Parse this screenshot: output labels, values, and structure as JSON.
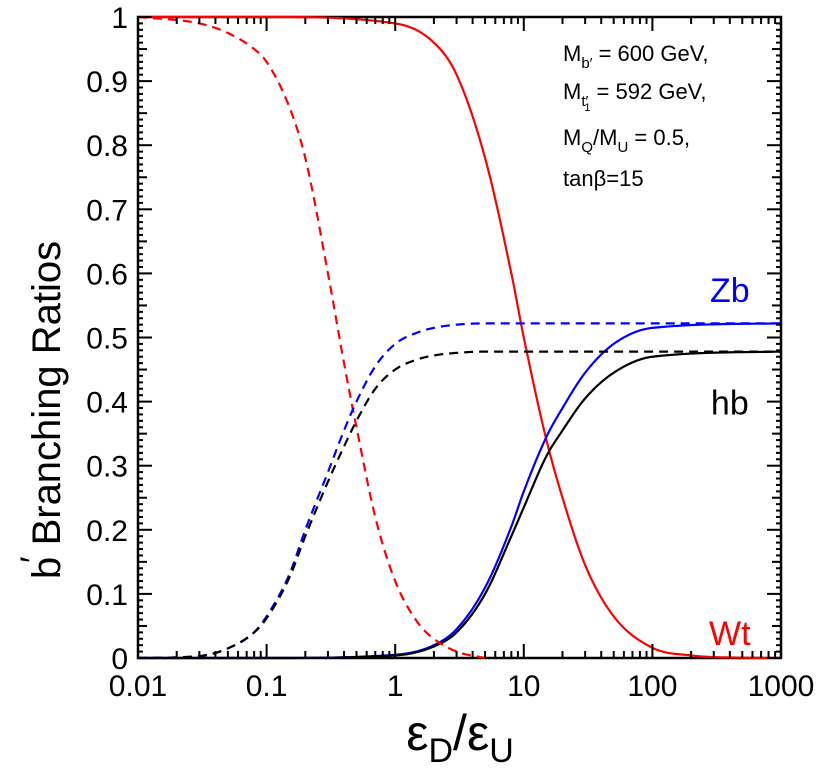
{
  "chart_data": {
    "type": "line",
    "title": "",
    "xlabel": "εD/εU",
    "xlabel_parts": {
      "eps1": "ε",
      "sub1": "D",
      "slash": "/",
      "eps2": "ε",
      "sub2": "U"
    },
    "ylabel": "b′ Branching Ratios",
    "ylabel_parts": {
      "b": "b",
      "prime": "′",
      "rest": " Branching Ratios"
    },
    "xscale": "log",
    "xlim": [
      0.01,
      1000
    ],
    "ylim": [
      0,
      1
    ],
    "xticks": [
      0.01,
      0.1,
      1,
      10,
      100,
      1000
    ],
    "xtick_labels": [
      "0.01",
      "0.1",
      "1",
      "10",
      "100",
      "1000"
    ],
    "yticks": [
      0,
      0.1,
      0.2,
      0.3,
      0.4,
      0.5,
      0.6,
      0.7,
      0.8,
      0.9,
      1
    ],
    "ytick_labels": [
      "0",
      "0.1",
      "0.2",
      "0.3",
      "0.4",
      "0.5",
      "0.6",
      "0.7",
      "0.8",
      "0.9",
      "1"
    ],
    "info_lines": {
      "line1": {
        "main": "M",
        "sub": "b′",
        "rest": " = 600 GeV,"
      },
      "line2": {
        "main": "M",
        "sub": "t′",
        "subsub": "1",
        "rest": " = 592 GeV,"
      },
      "line3": {
        "main1": "M",
        "sub1": "Q",
        "slash": "/M",
        "sub2": "U",
        "rest": " = 0.5,"
      },
      "line4": {
        "text": "tanβ=15"
      }
    },
    "series": [
      {
        "name": "Wt",
        "color": "#ff0000",
        "style": "solid",
        "x": [
          0.01,
          0.1,
          1,
          2,
          3,
          5,
          8,
          10,
          15,
          20,
          30,
          50,
          100,
          200,
          500,
          1000
        ],
        "y": [
          1.0,
          1.0,
          0.99,
          0.96,
          0.91,
          0.78,
          0.6,
          0.5,
          0.34,
          0.25,
          0.145,
          0.065,
          0.016,
          0.004,
          0.0005,
          0.0
        ]
      },
      {
        "name": "Zb",
        "color": "#0000ff",
        "style": "solid",
        "x": [
          0.01,
          0.1,
          1,
          2,
          3,
          5,
          8,
          10,
          15,
          20,
          30,
          50,
          100,
          1000
        ],
        "y": [
          0.0,
          0.0,
          0.005,
          0.02,
          0.045,
          0.11,
          0.205,
          0.26,
          0.345,
          0.39,
          0.445,
          0.49,
          0.515,
          0.522
        ]
      },
      {
        "name": "hb",
        "color": "#000000",
        "style": "solid",
        "x": [
          0.01,
          0.1,
          1,
          2,
          3,
          5,
          8,
          10,
          15,
          20,
          30,
          50,
          100,
          1000
        ],
        "y": [
          0.0,
          0.0,
          0.004,
          0.018,
          0.04,
          0.1,
          0.19,
          0.235,
          0.315,
          0.355,
          0.405,
          0.445,
          0.47,
          0.478
        ]
      },
      {
        "name": "Wt (dashed)",
        "color": "#ff0000",
        "style": "dashed",
        "x": [
          0.01,
          0.03,
          0.05,
          0.08,
          0.1,
          0.15,
          0.2,
          0.3,
          0.4,
          0.5,
          0.7,
          1,
          1.5,
          2,
          3,
          5
        ],
        "y": [
          1.0,
          0.99,
          0.975,
          0.95,
          0.93,
          0.86,
          0.78,
          0.6,
          0.46,
          0.36,
          0.22,
          0.12,
          0.055,
          0.03,
          0.01,
          0.0
        ]
      },
      {
        "name": "Zb (dashed)",
        "color": "#0000ff",
        "style": "dashed",
        "x": [
          0.01,
          0.03,
          0.05,
          0.08,
          0.1,
          0.15,
          0.2,
          0.3,
          0.4,
          0.5,
          0.7,
          1,
          1.5,
          2,
          3,
          5,
          10,
          1000
        ],
        "y": [
          0.0,
          0.003,
          0.015,
          0.04,
          0.065,
          0.13,
          0.2,
          0.29,
          0.355,
          0.4,
          0.455,
          0.49,
          0.508,
          0.515,
          0.52,
          0.522,
          0.522,
          0.522
        ]
      },
      {
        "name": "hb (dashed)",
        "color": "#000000",
        "style": "dashed",
        "x": [
          0.01,
          0.03,
          0.05,
          0.08,
          0.1,
          0.15,
          0.2,
          0.3,
          0.4,
          0.5,
          0.7,
          1,
          1.5,
          2,
          3,
          5,
          10,
          1000
        ],
        "y": [
          0.0,
          0.003,
          0.015,
          0.04,
          0.062,
          0.125,
          0.19,
          0.275,
          0.33,
          0.37,
          0.42,
          0.45,
          0.466,
          0.472,
          0.476,
          0.478,
          0.478,
          0.478
        ]
      }
    ],
    "series_labels": [
      {
        "text": "Zb",
        "color": "#0000ff",
        "x": 400,
        "y": 0.555
      },
      {
        "text": "hb",
        "color": "#000000",
        "x": 400,
        "y": 0.38
      },
      {
        "text": "Wt",
        "color": "#ff0000",
        "x": 400,
        "y": 0.02
      }
    ]
  }
}
